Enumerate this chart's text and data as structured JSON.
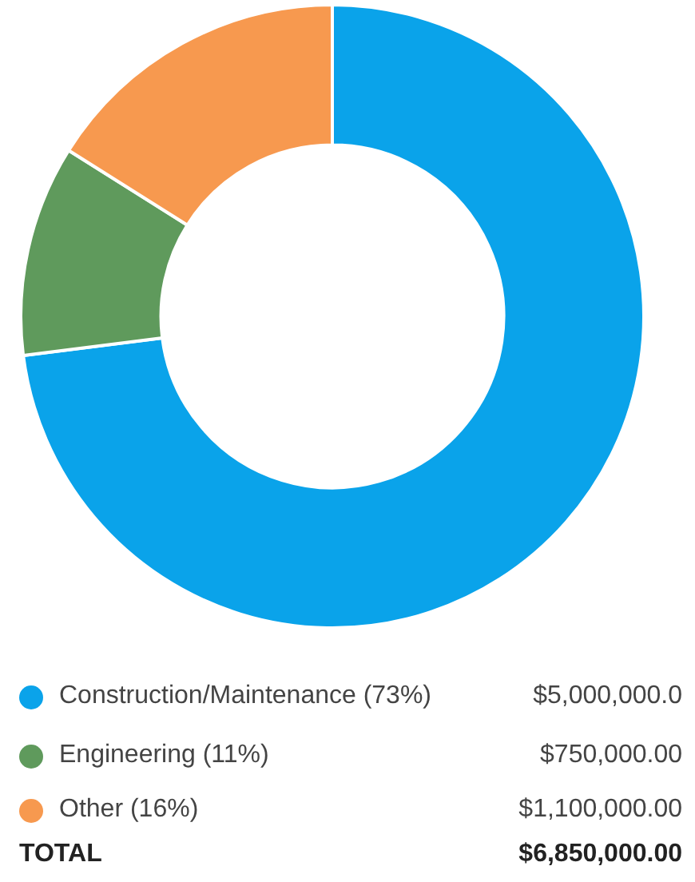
{
  "chart_data": {
    "type": "donut",
    "categories": [
      "Construction/Maintenance (73%)",
      "Engineering (11%)",
      "Other (16%)"
    ],
    "values": [
      5000000,
      750000,
      1100000
    ],
    "value_labels": [
      "$5,000,000.0",
      "$750,000.00",
      "$1,100,000.00"
    ],
    "colors": [
      "#0aa3ea",
      "#5f9a5c",
      "#f7994f"
    ],
    "legend": "bottom",
    "annotations": [
      "TOTAL",
      "$6,850,000.00"
    ]
  }
}
